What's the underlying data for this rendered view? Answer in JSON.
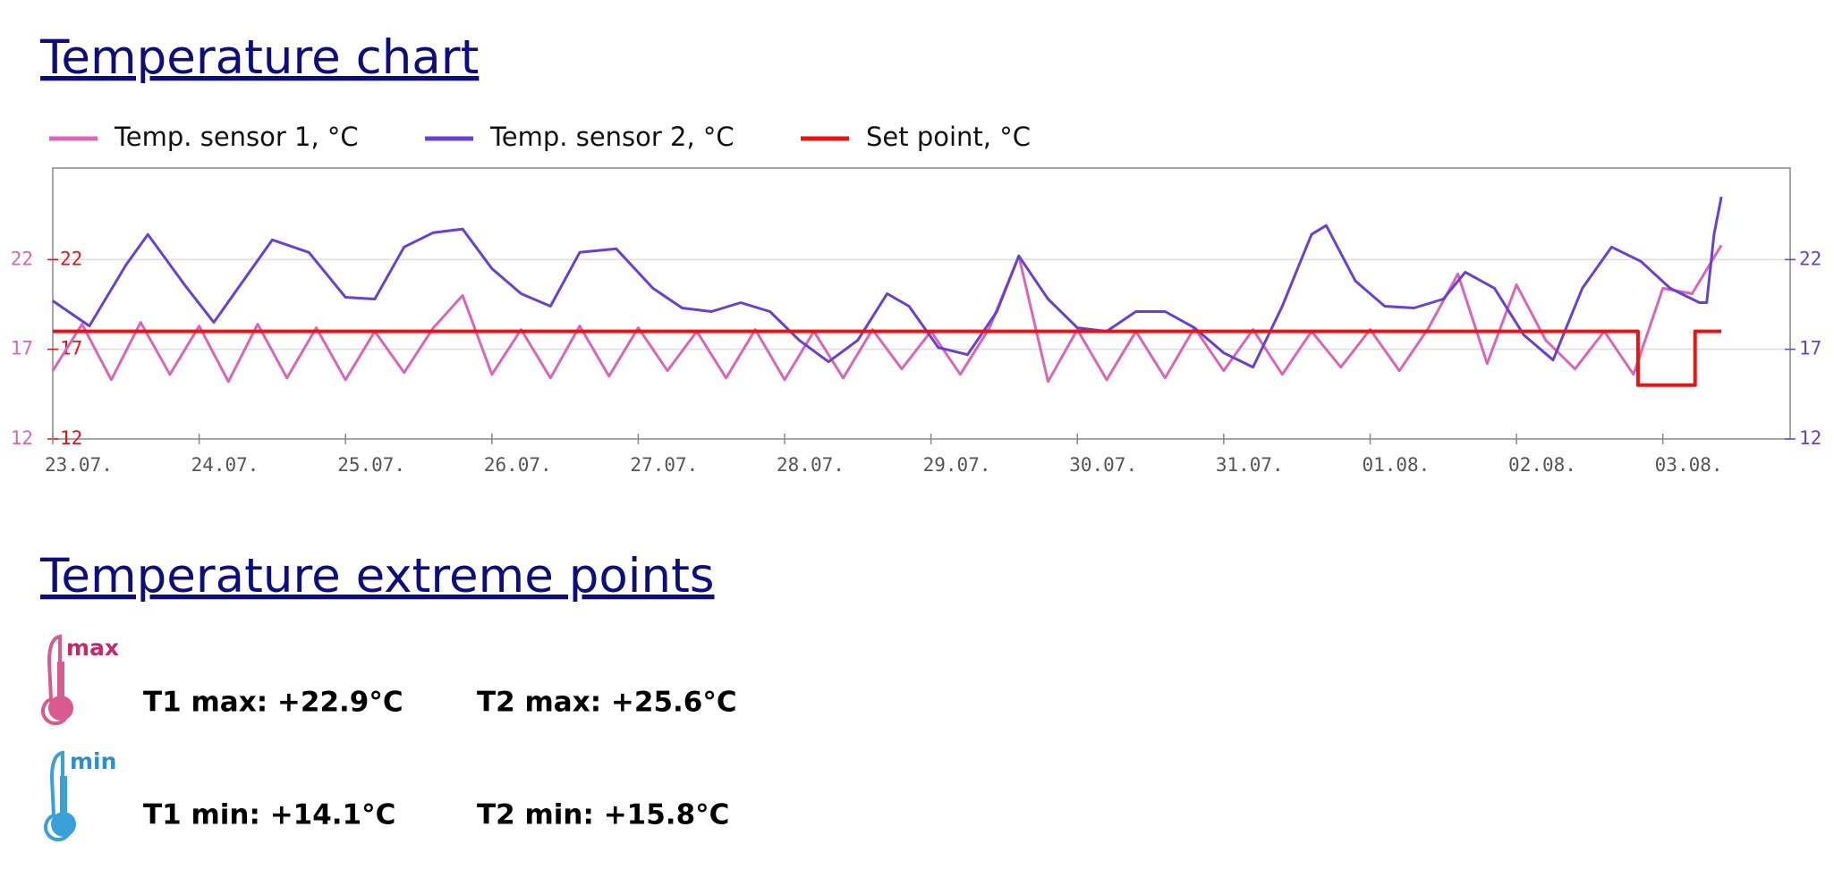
{
  "page_title": "Temperature chart",
  "chart_data": {
    "type": "line",
    "series": [
      {
        "name": "Temp. sensor 1, °C",
        "color": "#d966b8",
        "x": [
          0,
          0.2,
          0.4,
          0.6,
          0.8,
          1.0,
          1.2,
          1.4,
          1.6,
          1.8,
          2.0,
          2.2,
          2.4,
          2.6,
          2.8,
          3.0,
          3.2,
          3.4,
          3.6,
          3.8,
          4.0,
          4.2,
          4.4,
          4.6,
          4.8,
          5.0,
          5.2,
          5.4,
          5.6,
          5.8,
          6.0,
          6.2,
          6.4,
          6.6,
          6.8,
          7.0,
          7.2,
          7.4,
          7.6,
          7.8,
          8.0,
          8.2,
          8.4,
          8.6,
          8.8,
          9.0,
          9.2,
          9.4,
          9.6,
          9.8,
          10.0,
          10.2,
          10.4,
          10.6,
          10.8,
          11.0,
          11.2,
          11.4
        ],
        "values": [
          15.8,
          18.4,
          15.3,
          18.5,
          15.6,
          18.3,
          15.2,
          18.4,
          15.4,
          18.2,
          15.3,
          18.0,
          15.7,
          18.2,
          20.0,
          15.6,
          18.1,
          15.4,
          18.3,
          15.5,
          18.2,
          15.8,
          18.0,
          15.4,
          18.1,
          15.3,
          18.0,
          15.4,
          18.1,
          15.9,
          18.0,
          15.6,
          18.2,
          22.2,
          15.2,
          18.1,
          15.3,
          18.0,
          15.4,
          18.2,
          15.8,
          18.1,
          15.6,
          18.0,
          16.0,
          18.1,
          15.8,
          18.2,
          21.2,
          16.2,
          20.6,
          17.5,
          15.9,
          18.0,
          15.6,
          20.4,
          20.1,
          22.8
        ]
      },
      {
        "name": "Temp. sensor 2, °C",
        "color": "#6a3fd4",
        "axis": "y2",
        "x": [
          0,
          0.25,
          0.5,
          0.65,
          0.9,
          1.1,
          1.3,
          1.5,
          1.75,
          2.0,
          2.2,
          2.4,
          2.6,
          2.8,
          3.0,
          3.2,
          3.4,
          3.6,
          3.85,
          4.1,
          4.3,
          4.5,
          4.7,
          4.9,
          5.1,
          5.3,
          5.5,
          5.7,
          5.85,
          6.05,
          6.25,
          6.45,
          6.6,
          6.8,
          7.0,
          7.2,
          7.4,
          7.6,
          7.8,
          8.0,
          8.2,
          8.4,
          8.6,
          8.7,
          8.9,
          9.1,
          9.3,
          9.5,
          9.65,
          9.85,
          10.05,
          10.25,
          10.45,
          10.65,
          10.85,
          11.05,
          11.25,
          11.3,
          11.35,
          11.4
        ],
        "values": [
          19.7,
          18.3,
          21.7,
          23.4,
          20.6,
          18.5,
          20.8,
          23.1,
          22.4,
          19.9,
          19.8,
          22.7,
          23.5,
          23.7,
          21.5,
          20.1,
          19.4,
          22.4,
          22.6,
          20.4,
          19.3,
          19.1,
          19.6,
          19.1,
          17.5,
          16.3,
          17.5,
          20.1,
          19.4,
          17.1,
          16.7,
          19.1,
          22.2,
          19.8,
          18.2,
          18.0,
          19.1,
          19.1,
          18.2,
          16.8,
          16.0,
          19.4,
          23.4,
          23.9,
          20.8,
          19.4,
          19.3,
          19.8,
          21.3,
          20.4,
          17.8,
          16.4,
          20.4,
          22.7,
          21.9,
          20.4,
          19.6,
          19.6,
          23.4,
          25.5
        ]
      },
      {
        "name": "Set point, °C",
        "color": "#ee1111",
        "x": [
          0,
          10.83,
          10.83,
          11.22,
          11.22,
          11.4
        ],
        "values": [
          18,
          18,
          15,
          15,
          18,
          18
        ]
      }
    ],
    "xlim": [
      0,
      11.87
    ],
    "xticks": [
      {
        "value": 0,
        "label": "23.07."
      },
      {
        "value": 1,
        "label": "24.07."
      },
      {
        "value": 2,
        "label": "25.07."
      },
      {
        "value": 3,
        "label": "26.07."
      },
      {
        "value": 4,
        "label": "27.07."
      },
      {
        "value": 5,
        "label": "28.07."
      },
      {
        "value": 6,
        "label": "29.07."
      },
      {
        "value": 7,
        "label": "30.07."
      },
      {
        "value": 8,
        "label": "31.07."
      },
      {
        "value": 9,
        "label": "01.08."
      },
      {
        "value": 10,
        "label": "02.08."
      },
      {
        "value": 11,
        "label": "03.08."
      }
    ],
    "ylim": [
      12,
      27.1
    ],
    "yticks": [
      12,
      17,
      22
    ],
    "y2lim": [
      12,
      27.1
    ],
    "y2ticks": [
      12,
      17,
      22
    ],
    "grid": true,
    "legend": "top"
  },
  "extremes": {
    "title": "Temperature extreme points",
    "rows": [
      {
        "icon_label": "max",
        "items": [
          "T1 max: +22.9°C",
          "T2 max: +25.6°C"
        ]
      },
      {
        "icon_label": "min",
        "items": [
          "T1 min: +14.1°C",
          "T2 min: +15.8°C"
        ]
      }
    ]
  }
}
